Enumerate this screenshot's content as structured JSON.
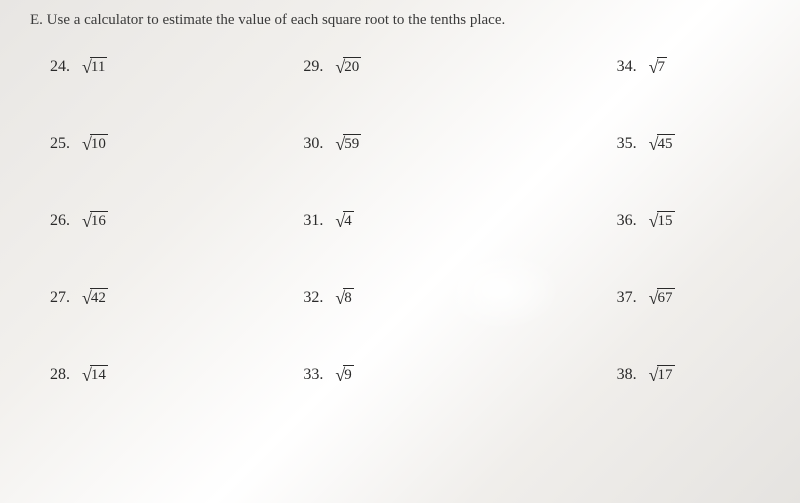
{
  "header": "E. Use a calculator to estimate the value of each square root to the tenths place.",
  "problems": {
    "p24": {
      "num": "24.",
      "rad": "11"
    },
    "p25": {
      "num": "25.",
      "rad": "10"
    },
    "p26": {
      "num": "26.",
      "rad": "16"
    },
    "p27": {
      "num": "27.",
      "rad": "42"
    },
    "p28": {
      "num": "28.",
      "rad": "14"
    },
    "p29": {
      "num": "29.",
      "rad": "20"
    },
    "p30": {
      "num": "30.",
      "rad": "59"
    },
    "p31": {
      "num": "31.",
      "rad": "4"
    },
    "p32": {
      "num": "32.",
      "rad": "8"
    },
    "p33": {
      "num": "33.",
      "rad": "9"
    },
    "p34": {
      "num": "34.",
      "rad": "7"
    },
    "p35": {
      "num": "35.",
      "rad": "45"
    },
    "p36": {
      "num": "36.",
      "rad": "15"
    },
    "p37": {
      "num": "37.",
      "rad": "67"
    },
    "p38": {
      "num": "38.",
      "rad": "17"
    }
  }
}
